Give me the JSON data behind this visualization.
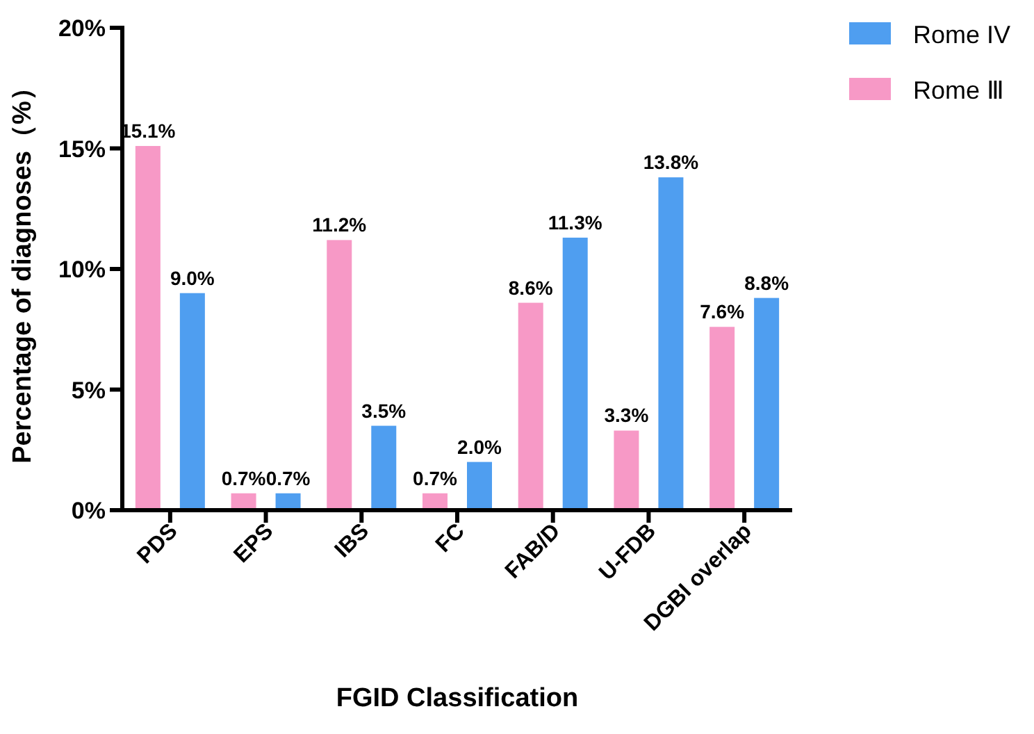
{
  "chart_data": {
    "type": "bar",
    "xlabel": "FGID Classification",
    "ylabel": "Percentage of diagnoses（%）",
    "categories": [
      "PDS",
      "EPS",
      "IBS",
      "FC",
      "FAB/D",
      "U-FDB",
      "DGBI overlap"
    ],
    "series": [
      {
        "name": "Rome Ⅲ",
        "color": "#f799c6",
        "values": [
          15.1,
          0.7,
          11.2,
          0.7,
          8.6,
          3.3,
          7.6
        ],
        "value_labels": [
          "15.1%",
          "0.7%",
          "11.2%",
          "0.7%",
          "8.6%",
          "3.3%",
          "7.6%"
        ]
      },
      {
        "name": "Rome IV",
        "color": "#4f9ef0",
        "values": [
          9.0,
          0.7,
          3.5,
          2.0,
          11.3,
          13.8,
          8.8
        ],
        "value_labels": [
          "9.0%",
          "0.7%",
          "3.5%",
          "2.0%",
          "11.3%",
          "13.8%",
          "8.8%"
        ]
      }
    ],
    "ylim": [
      0,
      20
    ],
    "yticks": [
      {
        "value": 0,
        "label": "0%"
      },
      {
        "value": 5,
        "label": "5%"
      },
      {
        "value": 10,
        "label": "10%"
      },
      {
        "value": 15,
        "label": "15%"
      },
      {
        "value": 20,
        "label": "20%"
      }
    ],
    "grid": false,
    "legend": "top right"
  }
}
